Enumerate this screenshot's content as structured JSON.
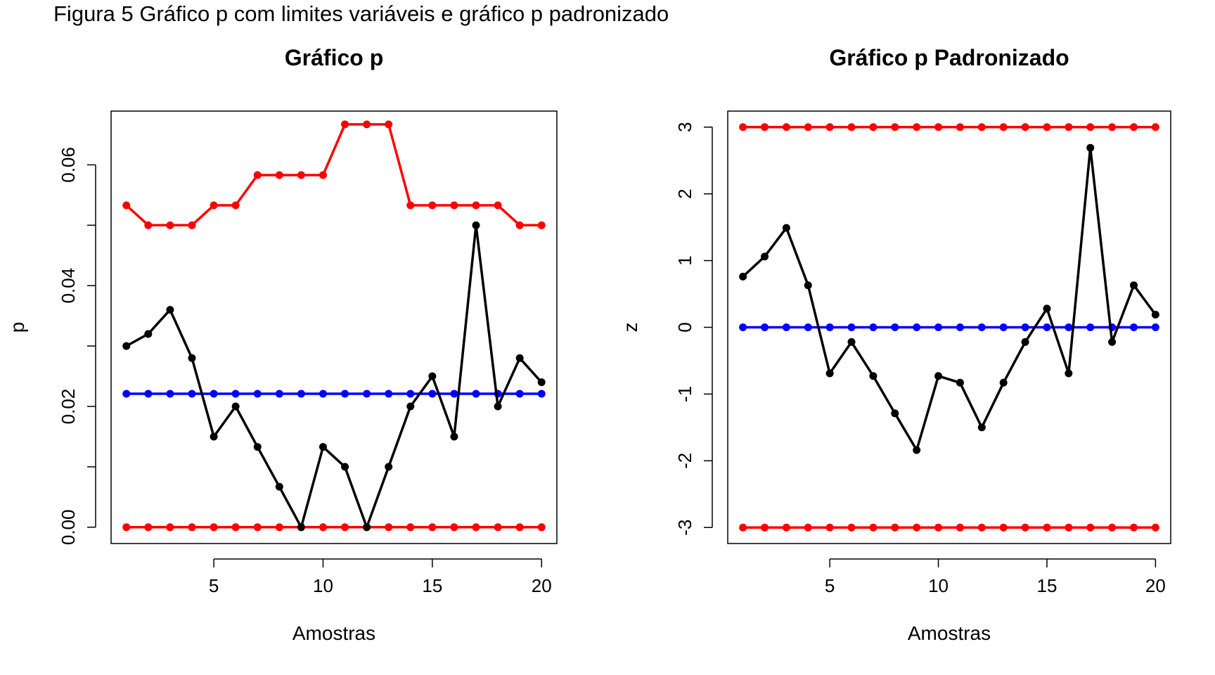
{
  "caption": "Figura 5 Gráfico p com limites variáveis e gráfico p padronizado",
  "colors": {
    "observed": "#000000",
    "limits": "#ff0000",
    "center": "#0000ff"
  },
  "chart_data": [
    {
      "type": "line",
      "title": "Gráfico p",
      "xlabel": "Amostras",
      "ylabel": "p",
      "xlim": [
        0.3,
        20.7
      ],
      "ylim": [
        -0.0027,
        0.0689
      ],
      "x_ticks": [
        5,
        10,
        15,
        20
      ],
      "x_tick_labels": [
        "5",
        "10",
        "15",
        "20"
      ],
      "y_ticks": [
        0.0,
        0.02,
        0.04,
        0.06
      ],
      "y_tick_labels": [
        "0.00",
        "0.02",
        "0.04",
        "0.06"
      ],
      "y_minor_ticks": [
        0.01,
        0.03,
        0.05
      ],
      "grid": false,
      "x": [
        1,
        2,
        3,
        4,
        5,
        6,
        7,
        8,
        9,
        10,
        11,
        12,
        13,
        14,
        15,
        16,
        17,
        18,
        19,
        20
      ],
      "series": [
        {
          "role": "upper",
          "color": "#ff0000",
          "values": [
            0.0533,
            0.05,
            0.05,
            0.05,
            0.0533,
            0.0533,
            0.0583,
            0.0583,
            0.0583,
            0.0583,
            0.0667,
            0.0667,
            0.0667,
            0.0533,
            0.0533,
            0.0533,
            0.0533,
            0.0533,
            0.05,
            0.05
          ]
        },
        {
          "role": "lower",
          "color": "#ff0000",
          "values": [
            0,
            0,
            0,
            0,
            0,
            0,
            0,
            0,
            0,
            0,
            0,
            0,
            0,
            0,
            0,
            0,
            0,
            0,
            0,
            0
          ]
        },
        {
          "role": "center",
          "color": "#0000ff",
          "values": [
            0.0221,
            0.0221,
            0.0221,
            0.0221,
            0.0221,
            0.0221,
            0.0221,
            0.0221,
            0.0221,
            0.0221,
            0.0221,
            0.0221,
            0.0221,
            0.0221,
            0.0221,
            0.0221,
            0.0221,
            0.0221,
            0.0221,
            0.0221
          ]
        },
        {
          "role": "observed",
          "color": "#000000",
          "values": [
            0.03,
            0.032,
            0.036,
            0.028,
            0.015,
            0.02,
            0.0133,
            0.0067,
            0,
            0.0133,
            0.01,
            0,
            0.01,
            0.02,
            0.025,
            0.015,
            0.05,
            0.02,
            0.028,
            0.024
          ]
        }
      ]
    },
    {
      "type": "line",
      "title": "Gráfico p Padronizado",
      "xlabel": "Amostras",
      "ylabel": "z",
      "xlim": [
        0.3,
        20.7
      ],
      "ylim": [
        -3.24,
        3.24
      ],
      "x_ticks": [
        5,
        10,
        15,
        20
      ],
      "x_tick_labels": [
        "5",
        "10",
        "15",
        "20"
      ],
      "y_ticks": [
        -3,
        -2,
        -1,
        0,
        1,
        2,
        3
      ],
      "y_tick_labels": [
        "-3",
        "-2",
        "-1",
        "0",
        "1",
        "2",
        "3"
      ],
      "y_minor_ticks": [],
      "grid": false,
      "x": [
        1,
        2,
        3,
        4,
        5,
        6,
        7,
        8,
        9,
        10,
        11,
        12,
        13,
        14,
        15,
        16,
        17,
        18,
        19,
        20
      ],
      "series": [
        {
          "role": "upper",
          "color": "#ff0000",
          "values": [
            3,
            3,
            3,
            3,
            3,
            3,
            3,
            3,
            3,
            3,
            3,
            3,
            3,
            3,
            3,
            3,
            3,
            3,
            3,
            3
          ]
        },
        {
          "role": "lower",
          "color": "#ff0000",
          "values": [
            -3,
            -3,
            -3,
            -3,
            -3,
            -3,
            -3,
            -3,
            -3,
            -3,
            -3,
            -3,
            -3,
            -3,
            -3,
            -3,
            -3,
            -3,
            -3,
            -3
          ]
        },
        {
          "role": "center",
          "color": "#0000ff",
          "values": [
            0,
            0,
            0,
            0,
            0,
            0,
            0,
            0,
            0,
            0,
            0,
            0,
            0,
            0,
            0,
            0,
            0,
            0,
            0,
            0
          ]
        },
        {
          "role": "observed",
          "color": "#000000",
          "values": [
            0.76,
            1.06,
            1.49,
            0.63,
            -0.69,
            -0.22,
            -0.73,
            -1.29,
            -1.84,
            -0.73,
            -0.83,
            -1.5,
            -0.83,
            -0.22,
            0.28,
            -0.69,
            2.69,
            -0.22,
            0.63,
            0.19
          ]
        }
      ]
    }
  ]
}
